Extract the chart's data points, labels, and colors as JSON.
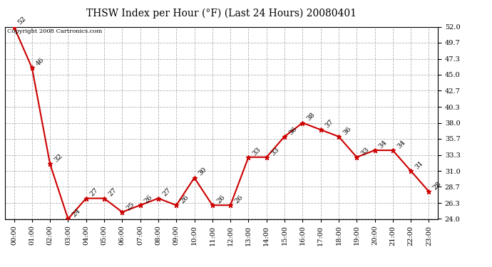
{
  "title": "THSW Index per Hour (°F) (Last 24 Hours) 20080401",
  "copyright": "Copyright 2008 Cartronics.com",
  "hours": [
    "00:00",
    "01:00",
    "02:00",
    "03:00",
    "04:00",
    "05:00",
    "06:00",
    "07:00",
    "08:00",
    "09:00",
    "10:00",
    "11:00",
    "12:00",
    "13:00",
    "14:00",
    "15:00",
    "16:00",
    "17:00",
    "18:00",
    "19:00",
    "20:00",
    "21:00",
    "22:00",
    "23:00"
  ],
  "values": [
    52,
    46,
    32,
    24,
    27,
    27,
    25,
    26,
    27,
    26,
    30,
    26,
    26,
    33,
    33,
    36,
    38,
    37,
    36,
    33,
    34,
    34,
    31,
    28
  ],
  "ylim_min": 24.0,
  "ylim_max": 52.0,
  "yticks": [
    24.0,
    26.3,
    28.7,
    31.0,
    33.3,
    35.7,
    38.0,
    40.3,
    42.7,
    45.0,
    47.3,
    49.7,
    52.0
  ],
  "line_color": "#cc0000",
  "marker_color": "#cc0000",
  "bg_color": "#ffffff",
  "plot_bg_color": "#ffffff",
  "grid_color": "#aaaaaa",
  "title_fontsize": 10,
  "label_fontsize": 7,
  "annotation_fontsize": 7,
  "copyright_fontsize": 6
}
